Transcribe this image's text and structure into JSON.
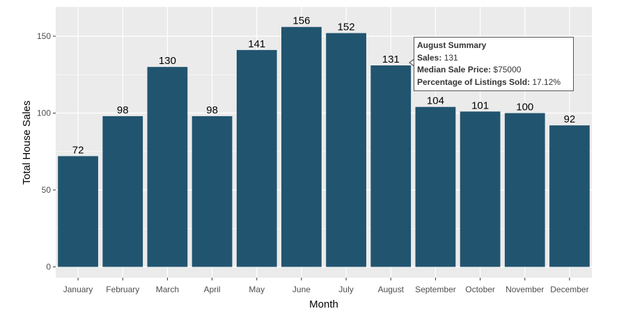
{
  "chart_data": {
    "type": "bar",
    "categories": [
      "January",
      "February",
      "March",
      "April",
      "May",
      "June",
      "July",
      "August",
      "September",
      "October",
      "November",
      "December"
    ],
    "values": [
      72,
      98,
      130,
      98,
      141,
      156,
      152,
      131,
      104,
      101,
      100,
      92
    ],
    "title": "",
    "xlabel": "Month",
    "ylabel": "Total House Sales",
    "ylim": [
      -7,
      169
    ],
    "yticks": [
      0,
      50,
      100,
      150
    ],
    "grid": true,
    "colors": {
      "bar": "#21546f",
      "panel": "#ebebeb",
      "grid": "#ffffff"
    }
  },
  "tooltip": {
    "title": "August Summary",
    "rows": [
      {
        "label": "Sales:",
        "value": "131"
      },
      {
        "label": "Median Sale Price:",
        "value": "$75000"
      },
      {
        "label": "Percentage of Listings Sold:",
        "value": "17.12%"
      }
    ]
  }
}
